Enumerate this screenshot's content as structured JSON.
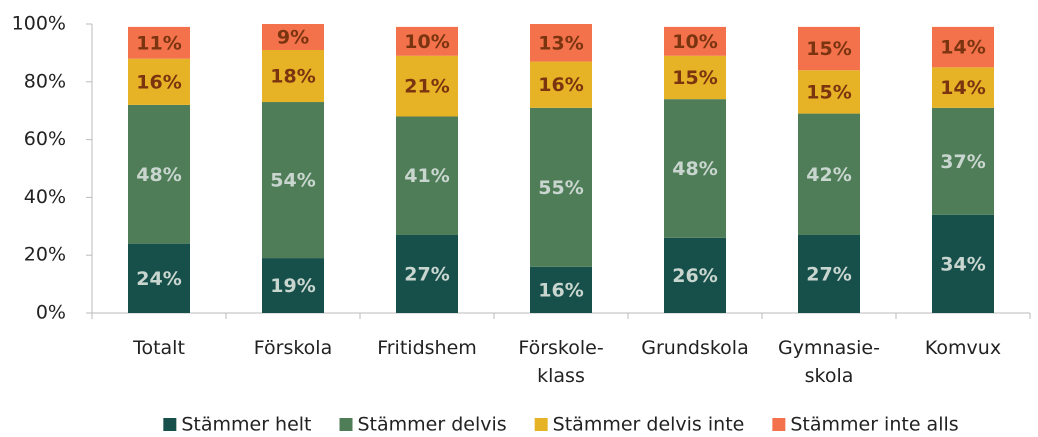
{
  "chart_data": {
    "type": "stacked_bar",
    "categories": [
      "Totalt",
      "Förskola",
      "Fritidshem",
      "Förskole-\nklass",
      "Grundskola",
      "Gymnasie-\nskola",
      "Komvux"
    ],
    "series": [
      {
        "name": "Stämmer helt",
        "color": "#17504b",
        "label_color": "#c9d6cf",
        "values": [
          24,
          19,
          27,
          16,
          26,
          27,
          34
        ],
        "value_labels": [
          "24%",
          "19%",
          "27%",
          "16%",
          "26%",
          "27%",
          "34%"
        ]
      },
      {
        "name": "Stämmer delvis",
        "color": "#4e7d57",
        "label_color": "#c9d6cf",
        "values": [
          48,
          54,
          41,
          55,
          48,
          42,
          37
        ],
        "value_labels": [
          "48%",
          "54%",
          "41%",
          "55%",
          "48%",
          "42%",
          "37%"
        ]
      },
      {
        "name": "Stämmer delvis inte",
        "color": "#e6b326",
        "label_color": "#7a3510",
        "values": [
          16,
          18,
          21,
          16,
          15,
          15,
          14
        ],
        "value_labels": [
          "16%",
          "18%",
          "21%",
          "16%",
          "15%",
          "15%",
          "14%"
        ]
      },
      {
        "name": "Stämmer inte alls",
        "color": "#f4724b",
        "label_color": "#7a3510",
        "values": [
          11,
          9,
          10,
          13,
          10,
          15,
          14
        ],
        "value_labels": [
          "11%",
          "9%",
          "10%",
          "13%",
          "10%",
          "15%",
          "14%"
        ]
      }
    ],
    "ylim": [
      0,
      100
    ],
    "yticks": [
      {
        "value": 0,
        "label": "0%"
      },
      {
        "value": 20,
        "label": "20%"
      },
      {
        "value": 40,
        "label": "40%"
      },
      {
        "value": 60,
        "label": "60%"
      },
      {
        "value": 80,
        "label": "80%"
      },
      {
        "value": 100,
        "label": "100%"
      }
    ],
    "legend": "bottom"
  }
}
